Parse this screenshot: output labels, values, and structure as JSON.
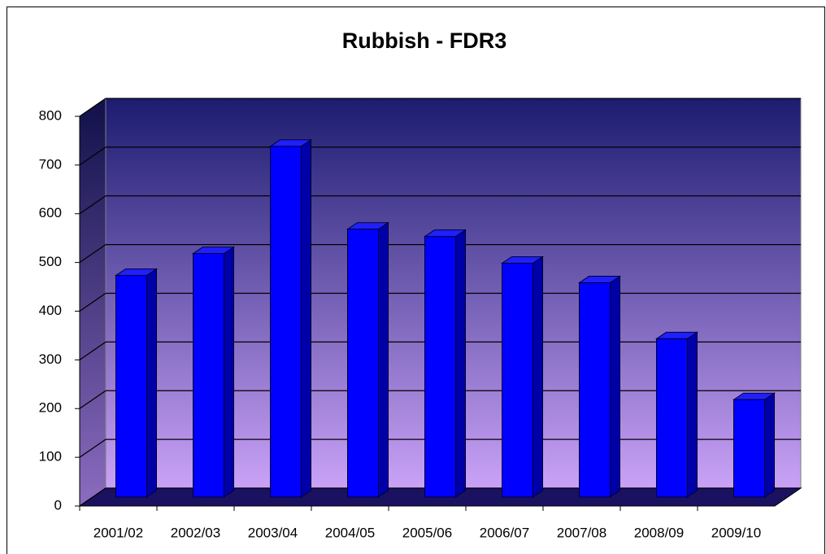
{
  "chart_data": {
    "type": "bar",
    "title": "Rubbish - FDR3",
    "categories": [
      "2001/02",
      "2002/03",
      "2003/04",
      "2004/05",
      "2005/06",
      "2006/07",
      "2007/08",
      "2008/09",
      "2009/10"
    ],
    "values": [
      455,
      500,
      720,
      550,
      535,
      480,
      440,
      325,
      200
    ],
    "color": "#0000ff",
    "ylim": [
      0,
      800
    ],
    "yticks": [
      0,
      100,
      200,
      300,
      400,
      500,
      600,
      700,
      800
    ],
    "grid": true
  }
}
